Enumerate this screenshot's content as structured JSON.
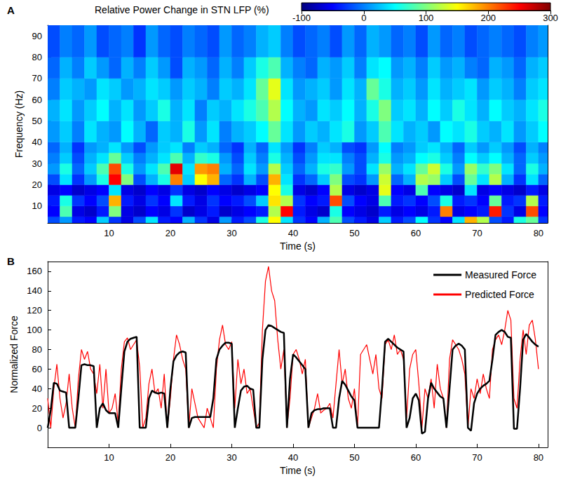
{
  "chart_data": [
    {
      "type": "heatmap",
      "title": "A",
      "x_label": "Time (s)",
      "y_label": "Frequency (Hz)",
      "xlim": [
        0,
        81.5
      ],
      "ylim": [
        2,
        95
      ],
      "xticks": [
        10,
        20,
        30,
        40,
        50,
        60,
        70,
        80
      ],
      "yticks": [
        10,
        20,
        30,
        40,
        50,
        60,
        70,
        80,
        90
      ],
      "grid": false,
      "x_edges": [
        0,
        2,
        4,
        6,
        8,
        10,
        12,
        14,
        16,
        18,
        20,
        22,
        24,
        26,
        28,
        30,
        32,
        34,
        36,
        38,
        40,
        42,
        44,
        46,
        48,
        50,
        52,
        54,
        56,
        58,
        60,
        62,
        64,
        66,
        68,
        70,
        72,
        74,
        76,
        78,
        80,
        82
      ],
      "y_edges": [
        0,
        5,
        10,
        15,
        20,
        25,
        30,
        35,
        40,
        50,
        60,
        70,
        80,
        95
      ],
      "cells": [
        [
          -20,
          10,
          -40,
          -50,
          30,
          -30,
          -60,
          -20,
          40,
          -40,
          -50,
          20,
          -30,
          -60,
          10,
          -40,
          -20,
          60,
          150,
          40,
          -30,
          -50,
          20,
          80,
          -20,
          -40,
          -60,
          30,
          -40,
          -20,
          50,
          -30,
          -50,
          40,
          180,
          120,
          -20,
          -40,
          60,
          90,
          -30
        ],
        [
          -50,
          80,
          -60,
          -70,
          -40,
          100,
          -60,
          -70,
          -50,
          -60,
          -30,
          -70,
          -60,
          -40,
          -70,
          -60,
          -50,
          -40,
          120,
          250,
          -40,
          -60,
          -70,
          60,
          -50,
          -60,
          -70,
          -40,
          -60,
          -50,
          -60,
          -40,
          200,
          -60,
          -50,
          -40,
          240,
          -30,
          -60,
          220,
          -50
        ],
        [
          -40,
          60,
          -30,
          -50,
          -20,
          180,
          -40,
          -60,
          -30,
          -50,
          40,
          -40,
          -60,
          -30,
          -50,
          -40,
          -20,
          30,
          160,
          120,
          -30,
          -50,
          -40,
          220,
          -20,
          -50,
          -60,
          80,
          -40,
          -30,
          -50,
          -20,
          60,
          -40,
          -30,
          -50,
          90,
          -40,
          -30,
          120,
          -40
        ],
        [
          -60,
          -50,
          -70,
          -60,
          -50,
          40,
          -60,
          -70,
          -50,
          -60,
          -30,
          -60,
          -70,
          -50,
          -60,
          -70,
          -60,
          -50,
          150,
          60,
          -60,
          -70,
          -50,
          120,
          -60,
          -70,
          -60,
          140,
          -50,
          -60,
          80,
          -50,
          -60,
          -70,
          40,
          -60,
          -50,
          -60,
          -70,
          -40,
          -60
        ],
        [
          -20,
          40,
          -30,
          10,
          60,
          250,
          100,
          -20,
          20,
          60,
          200,
          30,
          150,
          180,
          -10,
          -30,
          20,
          -20,
          180,
          40,
          -30,
          -10,
          30,
          100,
          -20,
          -30,
          10,
          130,
          -10,
          20,
          120,
          110,
          30,
          -20,
          90,
          40,
          120,
          20,
          -30,
          40,
          -10
        ],
        [
          10,
          60,
          -10,
          30,
          80,
          220,
          60,
          10,
          40,
          80,
          260,
          40,
          190,
          200,
          20,
          -10,
          40,
          10,
          120,
          30,
          -10,
          20,
          60,
          70,
          10,
          -20,
          40,
          110,
          20,
          40,
          90,
          130,
          60,
          10,
          110,
          70,
          100,
          40,
          -10,
          60,
          20
        ],
        [
          0,
          30,
          -20,
          20,
          40,
          90,
          30,
          0,
          20,
          40,
          80,
          20,
          70,
          60,
          10,
          -20,
          30,
          0,
          60,
          20,
          -20,
          10,
          40,
          40,
          0,
          -20,
          20,
          60,
          10,
          20,
          50,
          60,
          30,
          0,
          50,
          30,
          50,
          20,
          -10,
          30,
          10
        ],
        [
          -10,
          20,
          -30,
          10,
          20,
          40,
          10,
          -20,
          10,
          30,
          40,
          0,
          30,
          20,
          -10,
          -30,
          20,
          -10,
          40,
          10,
          -30,
          0,
          30,
          20,
          -20,
          -30,
          10,
          50,
          0,
          10,
          30,
          40,
          20,
          -10,
          30,
          10,
          30,
          10,
          -20,
          20,
          0
        ],
        [
          10,
          30,
          0,
          40,
          20,
          10,
          50,
          20,
          -10,
          30,
          20,
          60,
          10,
          40,
          0,
          20,
          30,
          50,
          90,
          40,
          10,
          30,
          20,
          40,
          60,
          10,
          30,
          80,
          40,
          20,
          30,
          10,
          50,
          40,
          60,
          30,
          20,
          40,
          10,
          30,
          50
        ],
        [
          20,
          40,
          10,
          30,
          50,
          20,
          40,
          10,
          30,
          60,
          20,
          40,
          0,
          30,
          20,
          40,
          60,
          80,
          120,
          50,
          20,
          10,
          40,
          30,
          50,
          20,
          60,
          100,
          30,
          40,
          20,
          50,
          30,
          60,
          40,
          20,
          50,
          30,
          20,
          40,
          60
        ],
        [
          0,
          30,
          20,
          10,
          40,
          30,
          10,
          20,
          40,
          30,
          10,
          30,
          20,
          0,
          30,
          20,
          40,
          90,
          140,
          40,
          10,
          20,
          30,
          10,
          40,
          20,
          90,
          60,
          20,
          30,
          10,
          40,
          20,
          30,
          40,
          10,
          30,
          20,
          0,
          30,
          40
        ],
        [
          -10,
          20,
          0,
          30,
          10,
          -10,
          20,
          0,
          30,
          10,
          -20,
          20,
          10,
          -10,
          20,
          0,
          30,
          60,
          80,
          20,
          0,
          -10,
          20,
          10,
          30,
          0,
          40,
          50,
          10,
          20,
          0,
          30,
          10,
          20,
          0,
          -10,
          20,
          10,
          -10,
          20,
          30
        ],
        [
          -20,
          0,
          -10,
          10,
          -20,
          -10,
          0,
          -30,
          10,
          -10,
          -20,
          0,
          -10,
          -20,
          10,
          -10,
          0,
          20,
          30,
          0,
          -20,
          -10,
          0,
          -20,
          10,
          -10,
          20,
          10,
          -10,
          0,
          -20,
          10,
          -10,
          0,
          -20,
          -10,
          0,
          -10,
          -20,
          0,
          10
        ]
      ],
      "colorbar": {
        "title": "Relative Power Change in STN LFP (%)",
        "range": [
          -100,
          300
        ],
        "ticks": [
          -100,
          0,
          100,
          200,
          300
        ]
      }
    },
    {
      "type": "line",
      "title": "B",
      "x_label": "Time (s)",
      "y_label": "Normalized Force",
      "xlim": [
        0,
        81.5
      ],
      "ylim": [
        -20,
        170
      ],
      "xticks": [
        10,
        20,
        30,
        40,
        50,
        60,
        70,
        80
      ],
      "yticks": [
        0,
        20,
        40,
        60,
        80,
        100,
        120,
        140,
        160
      ],
      "grid": false,
      "legend": "upper right",
      "x": [
        0,
        0.5,
        1,
        1.5,
        2,
        2.5,
        3,
        3.5,
        4,
        4.5,
        5,
        5.5,
        6,
        6.5,
        7,
        7.5,
        8,
        8.5,
        9,
        9.5,
        10,
        10.5,
        11,
        11.5,
        12,
        12.5,
        13,
        13.5,
        14,
        14.5,
        15,
        15.5,
        16,
        16.5,
        17,
        17.5,
        18,
        18.5,
        19,
        19.5,
        20,
        20.5,
        21,
        21.5,
        22,
        22.5,
        23,
        23.5,
        24,
        24.5,
        25,
        25.5,
        26,
        26.5,
        27,
        27.5,
        28,
        28.5,
        29,
        29.5,
        30,
        30.5,
        31,
        31.5,
        32,
        32.5,
        33,
        33.5,
        34,
        34.5,
        35,
        35.5,
        36,
        36.5,
        37,
        37.5,
        38,
        38.5,
        39,
        39.5,
        40,
        40.5,
        41,
        41.5,
        42,
        42.5,
        43,
        43.5,
        44,
        44.5,
        45,
        45.5,
        46,
        46.5,
        47,
        47.5,
        48,
        48.5,
        49,
        49.5,
        50,
        50.5,
        51,
        51.5,
        52,
        52.5,
        53,
        53.5,
        54,
        54.5,
        55,
        55.5,
        56,
        56.5,
        57,
        57.5,
        58,
        58.5,
        59,
        59.5,
        60,
        60.5,
        61,
        61.5,
        62,
        62.5,
        63,
        63.5,
        64,
        64.5,
        65,
        65.5,
        66,
        66.5,
        67,
        67.5,
        68,
        68.5,
        69,
        69.5,
        70,
        70.5,
        71,
        71.5,
        72,
        72.5,
        73,
        73.5,
        74,
        74.5,
        75,
        75.5,
        76,
        76.5,
        77,
        77.5,
        78,
        78.5,
        79,
        79.5,
        80
      ],
      "series": [
        {
          "name": "Measured Force",
          "color": "#000000",
          "line_style": "solid",
          "values": [
            0,
            18,
            46,
            45,
            38,
            37,
            36,
            0,
            0,
            0,
            30,
            64,
            65,
            64,
            64,
            63,
            0,
            20,
            25,
            18,
            15,
            15,
            15,
            0,
            40,
            78,
            88,
            91,
            92,
            93,
            0,
            0,
            0,
            30,
            38,
            36,
            35,
            36,
            35,
            0,
            40,
            68,
            74,
            77,
            78,
            77,
            0,
            10,
            11,
            11,
            11,
            11,
            11,
            11,
            30,
            70,
            80,
            84,
            87,
            87,
            86,
            0,
            20,
            38,
            42,
            43,
            40,
            39,
            0,
            0,
            70,
            100,
            105,
            104,
            102,
            100,
            98,
            97,
            0,
            50,
            75,
            72,
            68,
            64,
            60,
            0,
            15,
            18,
            19,
            19,
            20,
            20,
            20,
            0,
            0,
            30,
            48,
            44,
            38,
            32,
            28,
            0,
            0,
            0,
            0,
            0,
            0,
            0,
            0,
            40,
            88,
            91,
            88,
            85,
            82,
            80,
            78,
            0,
            10,
            30,
            35,
            28,
            -6,
            -4,
            30,
            46,
            40,
            36,
            32,
            30,
            0,
            40,
            80,
            84,
            86,
            84,
            80,
            0,
            -3,
            25,
            35,
            40,
            43,
            45,
            48,
            70,
            95,
            98,
            100,
            98,
            93,
            92,
            -1,
            -1,
            40,
            90,
            96,
            92,
            88,
            85,
            83
          ]
        },
        {
          "name": "Predicted Force",
          "color": "#ff0000",
          "line_style": "solid",
          "values": [
            30,
            0,
            40,
            65,
            30,
            10,
            25,
            55,
            20,
            0,
            50,
            80,
            70,
            78,
            60,
            55,
            35,
            65,
            20,
            60,
            15,
            20,
            35,
            5,
            60,
            88,
            92,
            80,
            85,
            90,
            62,
            0,
            10,
            45,
            60,
            35,
            40,
            20,
            55,
            0,
            30,
            70,
            95,
            85,
            70,
            60,
            0,
            40,
            25,
            10,
            5,
            0,
            20,
            10,
            0,
            60,
            90,
            105,
            85,
            80,
            88,
            20,
            70,
            45,
            60,
            35,
            40,
            20,
            0,
            5,
            100,
            150,
            165,
            140,
            130,
            90,
            60,
            80,
            0,
            30,
            75,
            80,
            70,
            55,
            70,
            0,
            10,
            20,
            35,
            15,
            18,
            20,
            25,
            10,
            45,
            80,
            45,
            60,
            30,
            20,
            40,
            0,
            75,
            80,
            85,
            70,
            55,
            75,
            40,
            30,
            85,
            90,
            80,
            95,
            75,
            80,
            70,
            10,
            60,
            75,
            80,
            45,
            0,
            40,
            30,
            50,
            20,
            65,
            40,
            30,
            0,
            70,
            90,
            85,
            80,
            70,
            55,
            0,
            40,
            30,
            50,
            35,
            55,
            40,
            30,
            80,
            90,
            95,
            85,
            100,
            120,
            110,
            30,
            20,
            70,
            100,
            75,
            105,
            110,
            90,
            60
          ]
        }
      ]
    }
  ]
}
